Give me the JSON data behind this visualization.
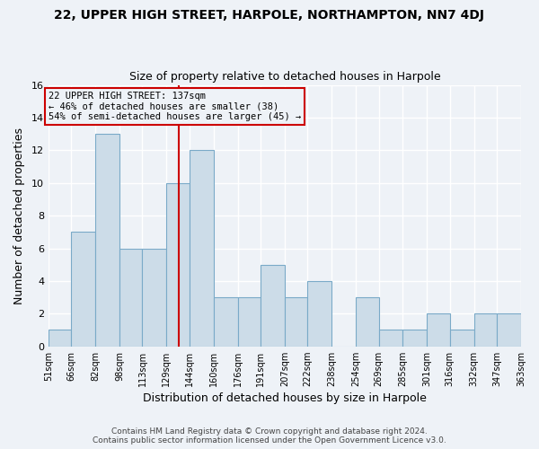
{
  "title": "22, UPPER HIGH STREET, HARPOLE, NORTHAMPTON, NN7 4DJ",
  "subtitle": "Size of property relative to detached houses in Harpole",
  "xlabel": "Distribution of detached houses by size in Harpole",
  "ylabel": "Number of detached properties",
  "bin_edges": [
    51,
    66,
    82,
    98,
    113,
    129,
    144,
    160,
    176,
    191,
    207,
    222,
    238,
    254,
    269,
    285,
    301,
    316,
    332,
    347,
    363
  ],
  "bin_labels": [
    "51sqm",
    "66sqm",
    "82sqm",
    "98sqm",
    "113sqm",
    "129sqm",
    "144sqm",
    "160sqm",
    "176sqm",
    "191sqm",
    "207sqm",
    "222sqm",
    "238sqm",
    "254sqm",
    "269sqm",
    "285sqm",
    "301sqm",
    "316sqm",
    "332sqm",
    "347sqm",
    "363sqm"
  ],
  "counts": [
    1,
    7,
    13,
    6,
    6,
    10,
    12,
    3,
    3,
    5,
    3,
    4,
    0,
    3,
    1,
    1,
    2,
    1,
    2,
    2
  ],
  "bar_color": "#ccdce8",
  "bar_edge_color": "#7aaac8",
  "vline_x": 137,
  "vline_color": "#cc0000",
  "annotation_lines": [
    "22 UPPER HIGH STREET: 137sqm",
    "← 46% of detached houses are smaller (38)",
    "54% of semi-detached houses are larger (45) →"
  ],
  "annotation_box_edge": "#cc0000",
  "ylim": [
    0,
    16
  ],
  "yticks": [
    0,
    2,
    4,
    6,
    8,
    10,
    12,
    14,
    16
  ],
  "footer_line1": "Contains HM Land Registry data © Crown copyright and database right 2024.",
  "footer_line2": "Contains public sector information licensed under the Open Government Licence v3.0.",
  "bg_color": "#eef2f7",
  "grid_color": "#ffffff"
}
